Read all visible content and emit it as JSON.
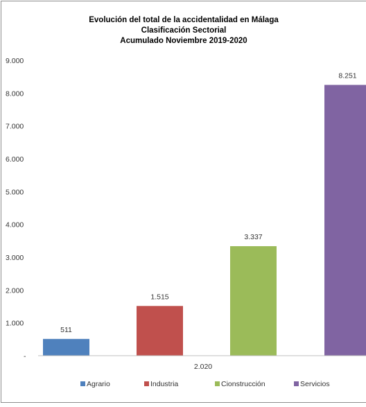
{
  "chart_data": {
    "type": "bar",
    "title_lines": [
      "Evolución del total de la accidentalidad en Málaga",
      "Clasificación Sectorial",
      "Acumulado Noviembre 2019-2020"
    ],
    "categories": [
      "2.020"
    ],
    "series": [
      {
        "name": "Agrario",
        "values": [
          511
        ],
        "label": "511",
        "color": "#4f81bd"
      },
      {
        "name": "Industria",
        "values": [
          1515
        ],
        "label": "1.515",
        "color": "#c0504d"
      },
      {
        "name": "Cionstrucción",
        "values": [
          3337
        ],
        "label": "3.337",
        "color": "#9bbb59"
      },
      {
        "name": "Servicios",
        "values": [
          8251
        ],
        "label": "8.251",
        "color": "#8064a2"
      }
    ],
    "ylim": [
      0,
      9000
    ],
    "yticks": [
      {
        "value": 0,
        "label": "-"
      },
      {
        "value": 1000,
        "label": "1.000"
      },
      {
        "value": 2000,
        "label": "2.000"
      },
      {
        "value": 3000,
        "label": "3.000"
      },
      {
        "value": 4000,
        "label": "4.000"
      },
      {
        "value": 5000,
        "label": "5.000"
      },
      {
        "value": 6000,
        "label": "6.000"
      },
      {
        "value": 7000,
        "label": "7.000"
      },
      {
        "value": 8000,
        "label": "8.000"
      },
      {
        "value": 9000,
        "label": "9.000"
      }
    ],
    "grid": false,
    "legend_position": "bottom"
  }
}
